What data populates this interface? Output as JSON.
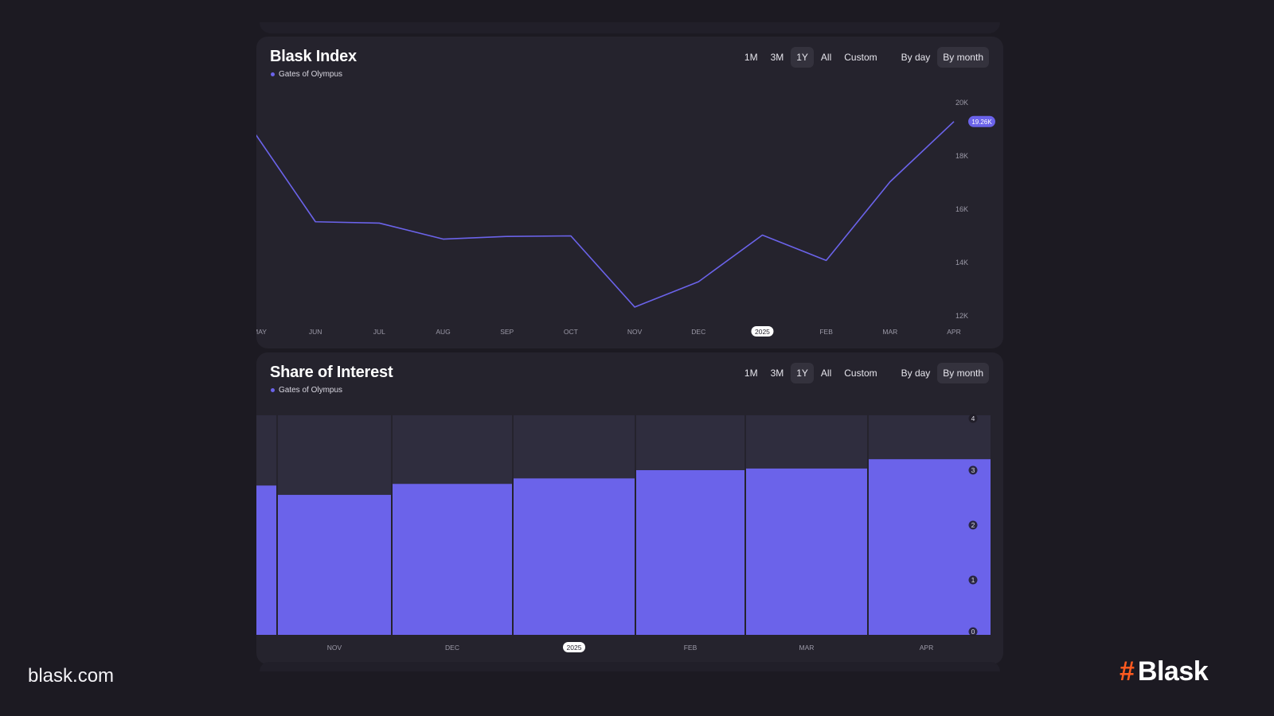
{
  "footer": {
    "site": "blask.com",
    "brand_hash": "#",
    "brand_name": "Blask"
  },
  "colors": {
    "accent": "#6b63ea",
    "background": "#1c1a22",
    "card": "#25232d",
    "brand": "#ff5a1f"
  },
  "panels": [
    {
      "title": "Blask Index",
      "legend": "Gates of Olympus",
      "range_buttons": [
        "1M",
        "3M",
        "1Y",
        "All",
        "Custom"
      ],
      "active_range": "1Y",
      "granularity_buttons": [
        "By day",
        "By month"
      ],
      "active_granularity": "By month"
    },
    {
      "title": "Share of Interest",
      "legend": "Gates of Olympus",
      "range_buttons": [
        "1M",
        "3M",
        "1Y",
        "All",
        "Custom"
      ],
      "active_range": "1Y",
      "granularity_buttons": [
        "By day",
        "By month"
      ],
      "active_granularity": "By month"
    }
  ],
  "chart_data": [
    {
      "type": "line",
      "title": "Blask Index",
      "x": [
        "MAY",
        "JUN",
        "JUL",
        "AUG",
        "SEP",
        "OCT",
        "NOV",
        "DEC",
        "2025",
        "FEB",
        "MAR",
        "APR"
      ],
      "highlighted_x": "2025",
      "series": [
        {
          "name": "Gates of Olympus",
          "values": [
            19.0,
            15.5,
            15.45,
            14.85,
            14.95,
            14.97,
            12.3,
            13.25,
            15.0,
            14.05,
            17.0,
            19.26
          ]
        }
      ],
      "y_ticks": [
        "12K",
        "14K",
        "16K",
        "18K",
        "20K"
      ],
      "ylim": [
        12,
        20
      ],
      "current_value_label": "19.26K",
      "grid": false,
      "legend_position": "top-left"
    },
    {
      "type": "bar",
      "title": "Share of Interest",
      "categories": [
        "NOV",
        "DEC",
        "2025",
        "FEB",
        "MAR",
        "APR"
      ],
      "highlighted_category": "2025",
      "series": [
        {
          "name": "Gates of Olympus",
          "values": [
            2.55,
            2.75,
            2.85,
            3.0,
            3.03,
            3.2
          ]
        }
      ],
      "leading_partial_value": 2.72,
      "y_ticks": [
        "0",
        "1",
        "2",
        "3",
        "4"
      ],
      "ylim": [
        0,
        4
      ],
      "grid": false,
      "legend_position": "top-left"
    }
  ]
}
